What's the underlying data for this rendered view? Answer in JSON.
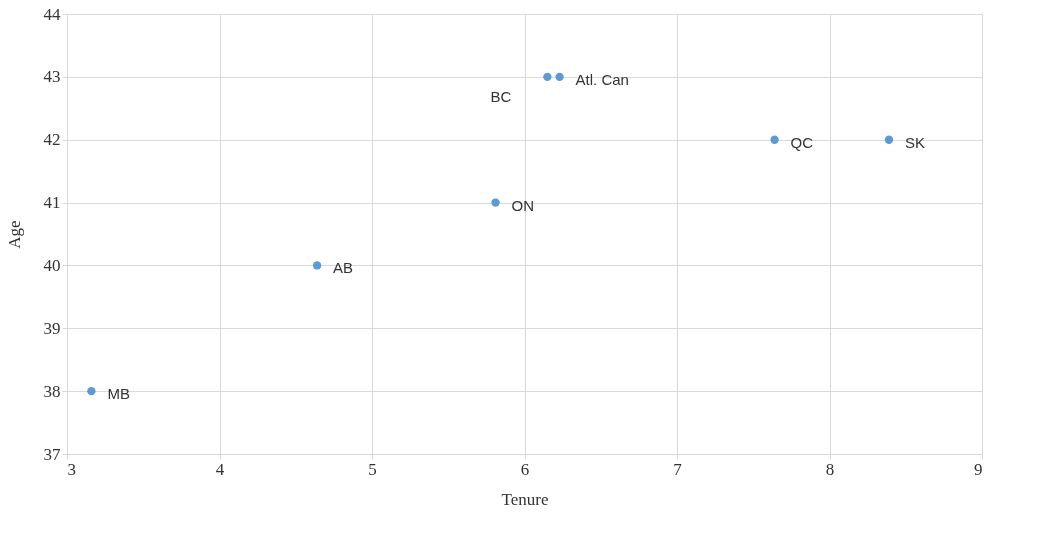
{
  "chart_data": {
    "type": "scatter",
    "xlabel": "Tenure",
    "ylabel": "Age",
    "x": [
      3.16,
      4.64,
      5.81,
      6.15,
      6.23,
      7.64,
      8.39
    ],
    "series": [
      {
        "color": "#5b9bd5",
        "values": [
          38,
          40,
          41,
          43,
          43,
          42,
          42
        ]
      }
    ],
    "annotations": [
      {
        "text": "MB",
        "x": 3.16,
        "y": 38
      },
      {
        "text": "AB",
        "x": 4.64,
        "y": 40
      },
      {
        "text": "ON",
        "x": 5.81,
        "y": 41
      },
      {
        "text": "BC",
        "x": 6.15,
        "y": 43
      },
      {
        "text": "Atl. Can",
        "x": 6.23,
        "y": 43
      },
      {
        "text": "QC",
        "x": 7.64,
        "y": 42
      },
      {
        "text": "SK",
        "x": 8.39,
        "y": 42
      }
    ],
    "xlim": [
      3,
      9
    ],
    "xticks": [
      3,
      4,
      5,
      6,
      7,
      8,
      9
    ],
    "ylim": [
      37,
      44
    ],
    "yticks": [
      37,
      38,
      39,
      40,
      41,
      42,
      43,
      44
    ],
    "grid": true,
    "marker": "circle"
  }
}
